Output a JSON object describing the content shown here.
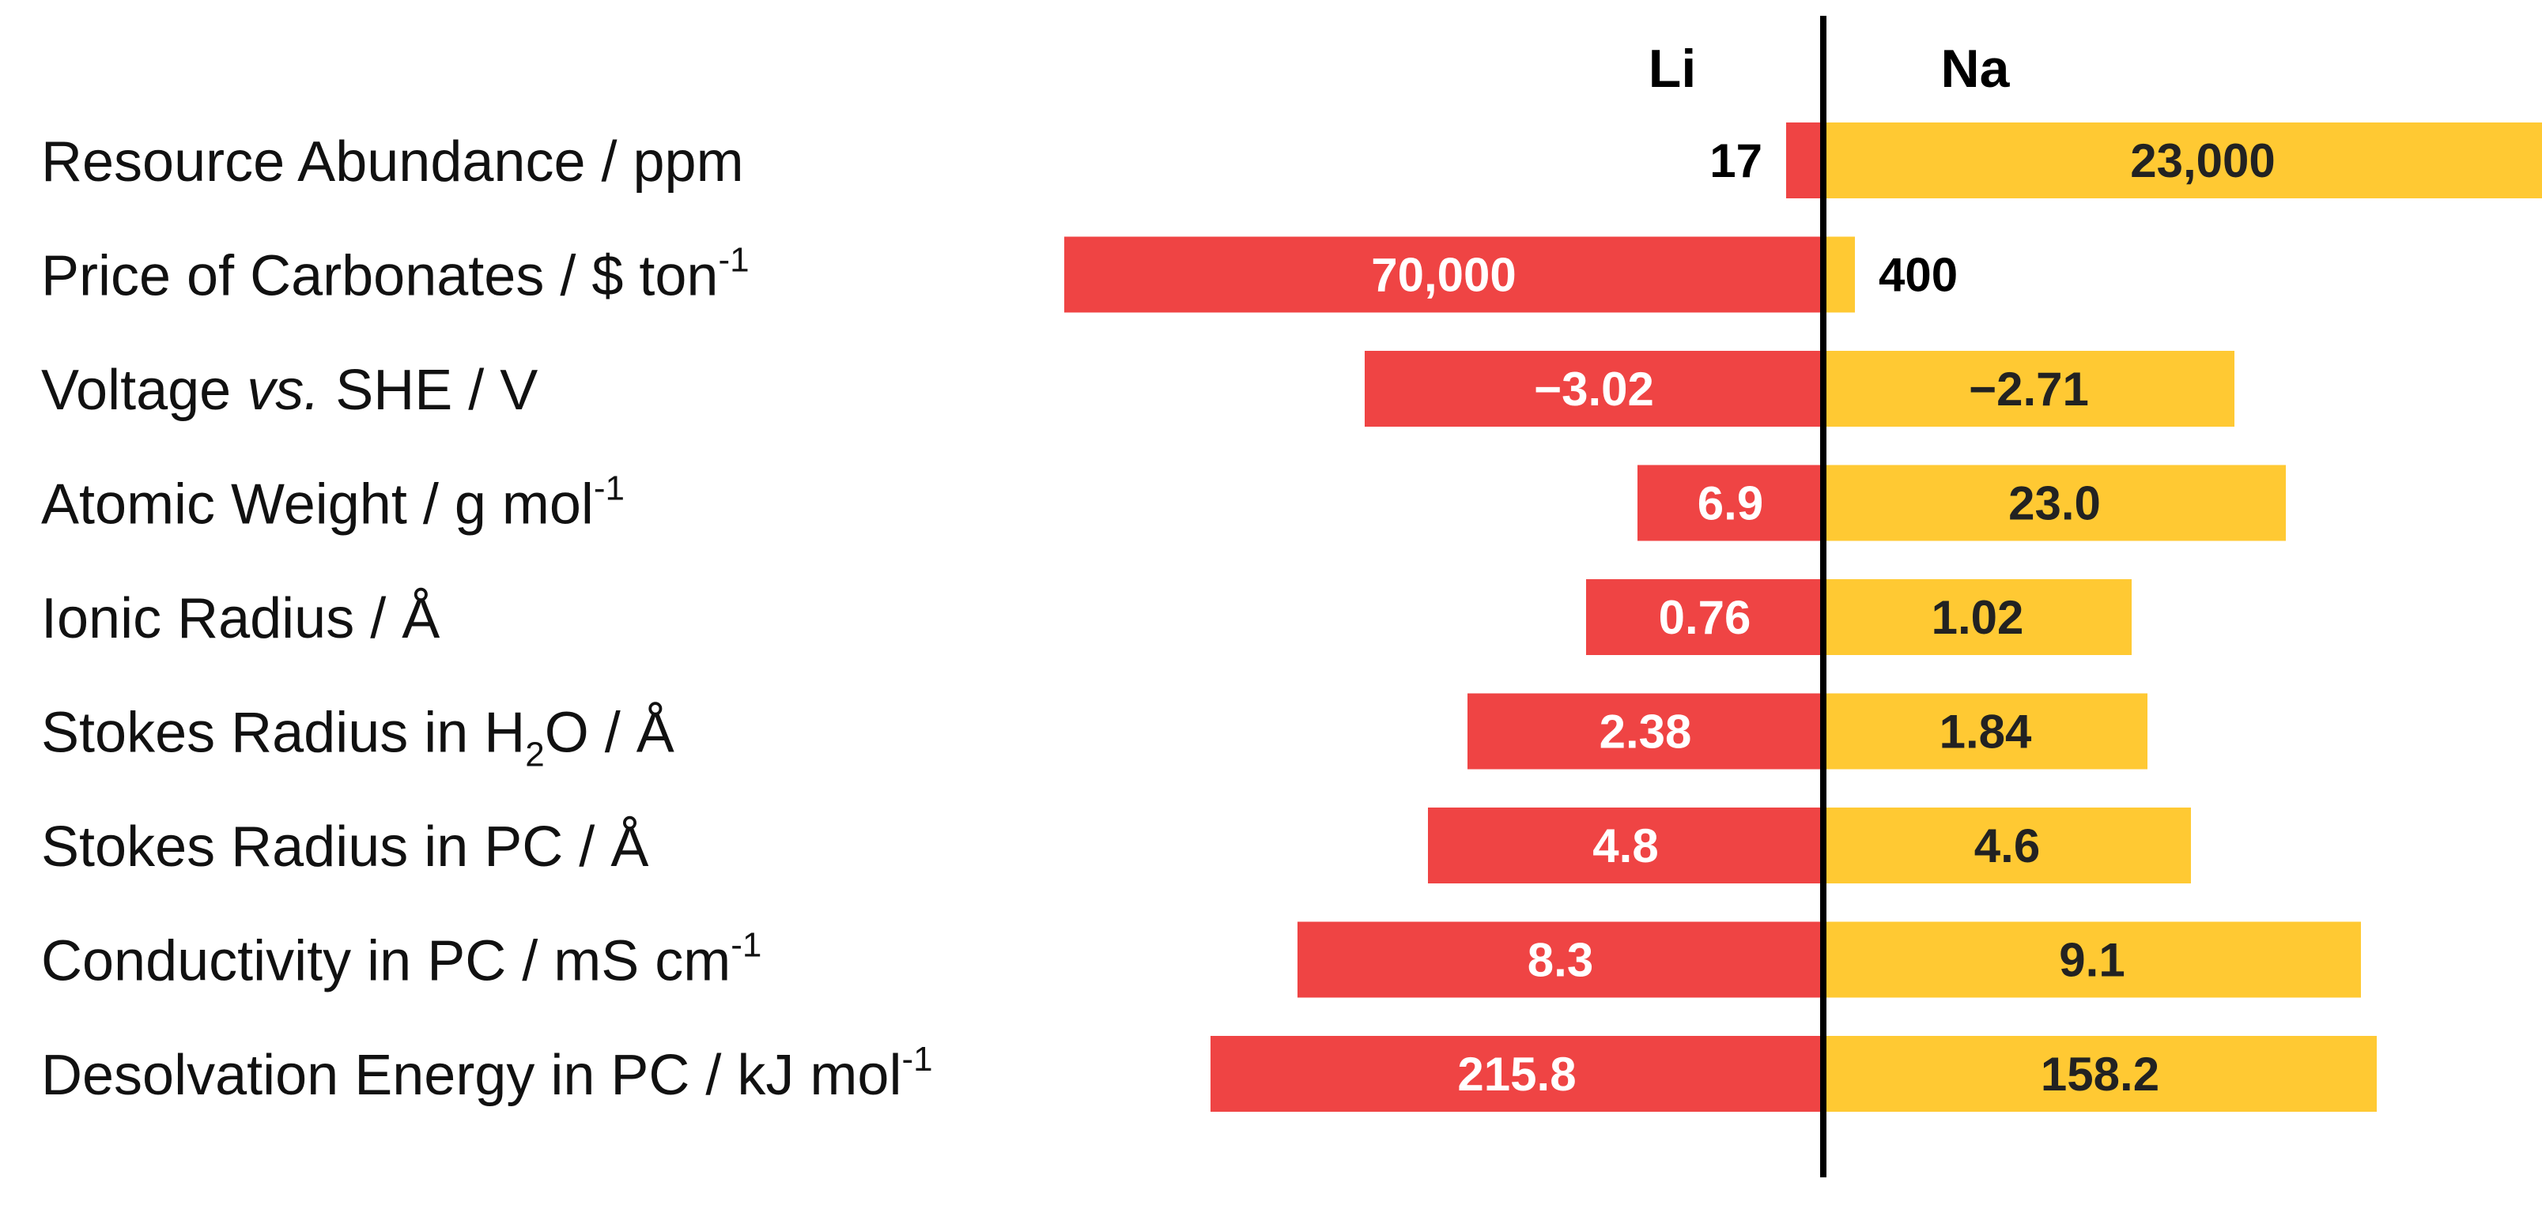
{
  "chart_data": {
    "type": "bar",
    "subtype": "diverging-horizontal",
    "columns": {
      "left": "Li",
      "right": "Na"
    },
    "colors": {
      "left": "#EF4444",
      "right": "#FFC933",
      "axis": "#000000",
      "label_on_left_bar": "#FFFFFF",
      "label_on_right_bar": "#222222",
      "label_outside": "#000000"
    },
    "rows": [
      {
        "label_parts": [
          {
            "text": "Resource Abundance / ppm",
            "style": "normal"
          }
        ],
        "left": {
          "display": "17",
          "frac": 0.047
        },
        "right": {
          "display": "23,000",
          "frac": 0.96
        }
      },
      {
        "label_parts": [
          {
            "text": "Price of Carbonates / $ ton",
            "style": "normal"
          },
          {
            "text": "-1",
            "style": "sup"
          }
        ],
        "left": {
          "display": "70,000",
          "frac": 0.96
        },
        "right": {
          "display": "400",
          "frac": 0.04
        }
      },
      {
        "label_parts": [
          {
            "text": "Voltage ",
            "style": "normal"
          },
          {
            "text": "vs.",
            "style": "italic"
          },
          {
            "text": " SHE / V",
            "style": "normal"
          }
        ],
        "left": {
          "display": "−3.02",
          "frac": 0.58
        },
        "right": {
          "display": "−2.71",
          "frac": 0.52
        }
      },
      {
        "label_parts": [
          {
            "text": "Atomic Weight / g mol",
            "style": "normal"
          },
          {
            "text": "-1",
            "style": "sup"
          }
        ],
        "left": {
          "display": "6.9",
          "frac": 0.235
        },
        "right": {
          "display": "23.0",
          "frac": 0.585
        }
      },
      {
        "label_parts": [
          {
            "text": "Ionic Radius / Å",
            "style": "normal"
          }
        ],
        "left": {
          "display": "0.76",
          "frac": 0.3
        },
        "right": {
          "display": "1.02",
          "frac": 0.39
        }
      },
      {
        "label_parts": [
          {
            "text": "Stokes Radius in H",
            "style": "normal"
          },
          {
            "text": "2",
            "style": "sub"
          },
          {
            "text": "O / Å",
            "style": "normal"
          }
        ],
        "left": {
          "display": "2.38",
          "frac": 0.45
        },
        "right": {
          "display": "1.84",
          "frac": 0.41
        }
      },
      {
        "label_parts": [
          {
            "text": "Stokes Radius in PC / Å",
            "style": "normal"
          }
        ],
        "left": {
          "display": "4.8",
          "frac": 0.5
        },
        "right": {
          "display": "4.6",
          "frac": 0.465
        }
      },
      {
        "label_parts": [
          {
            "text": "Conductivity in PC / mS cm",
            "style": "normal"
          },
          {
            "text": "-1",
            "style": "sup"
          }
        ],
        "left": {
          "display": "8.3",
          "frac": 0.665
        },
        "right": {
          "display": "9.1",
          "frac": 0.68
        }
      },
      {
        "label_parts": [
          {
            "text": "Desolvation Energy in PC / kJ mol",
            "style": "normal"
          },
          {
            "text": "-1",
            "style": "sup"
          }
        ],
        "left": {
          "display": "215.8",
          "frac": 0.775
        },
        "right": {
          "display": "158.2",
          "frac": 0.7
        }
      }
    ]
  }
}
